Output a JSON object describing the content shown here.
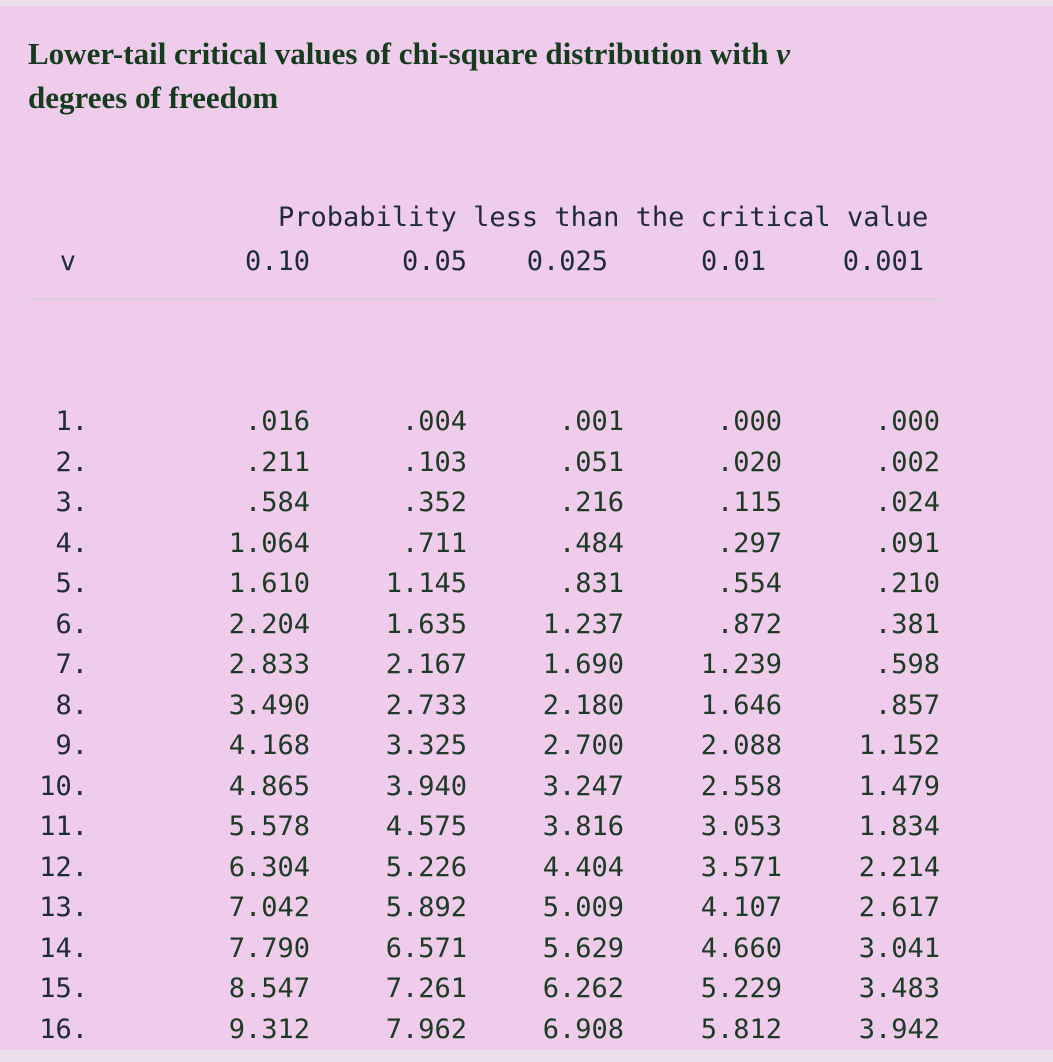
{
  "title": {
    "text": "Lower-tail critical values of chi-square distribution with",
    "symbol": "v",
    "text2": "degrees of freedom"
  },
  "table": {
    "group_header": "Probability less than the critical value",
    "columns": [
      "v",
      "0.10",
      "0.05",
      "0.025",
      "0.01",
      "0.001"
    ],
    "rows": [
      [
        "1.",
        ".016",
        ".004",
        ".001",
        ".000",
        ".000"
      ],
      [
        "2.",
        ".211",
        ".103",
        ".051",
        ".020",
        ".002"
      ],
      [
        "3.",
        ".584",
        ".352",
        ".216",
        ".115",
        ".024"
      ],
      [
        "4.",
        "1.064",
        ".711",
        ".484",
        ".297",
        ".091"
      ],
      [
        "5.",
        "1.610",
        "1.145",
        ".831",
        ".554",
        ".210"
      ],
      [
        "6.",
        "2.204",
        "1.635",
        "1.237",
        ".872",
        ".381"
      ],
      [
        "7.",
        "2.833",
        "2.167",
        "1.690",
        "1.239",
        ".598"
      ],
      [
        "8.",
        "3.490",
        "2.733",
        "2.180",
        "1.646",
        ".857"
      ],
      [
        "9.",
        "4.168",
        "3.325",
        "2.700",
        "2.088",
        "1.152"
      ],
      [
        "10.",
        "4.865",
        "3.940",
        "3.247",
        "2.558",
        "1.479"
      ],
      [
        "11.",
        "5.578",
        "4.575",
        "3.816",
        "3.053",
        "1.834"
      ],
      [
        "12.",
        "6.304",
        "5.226",
        "4.404",
        "3.571",
        "2.214"
      ],
      [
        "13.",
        "7.042",
        "5.892",
        "5.009",
        "4.107",
        "2.617"
      ],
      [
        "14.",
        "7.790",
        "6.571",
        "5.629",
        "4.660",
        "3.041"
      ],
      [
        "15.",
        "8.547",
        "7.261",
        "6.262",
        "5.229",
        "3.483"
      ],
      [
        "16.",
        "9.312",
        "7.962",
        "6.908",
        "5.812",
        "3.942"
      ]
    ]
  },
  "colors": {
    "background": "#efcbec",
    "title": "#133b1c",
    "text": "#1f2a3a"
  }
}
